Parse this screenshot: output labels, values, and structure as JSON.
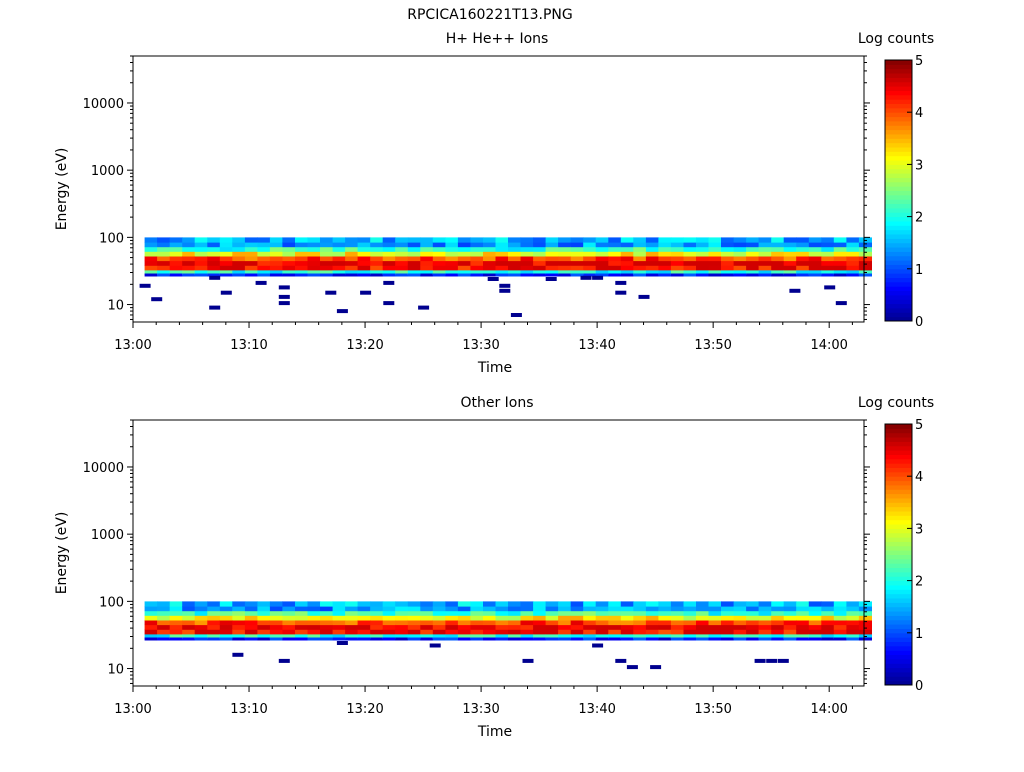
{
  "figure_title": "RPCICA160221T13.PNG",
  "colorbar": {
    "label": "Log counts",
    "range": [
      0,
      5
    ],
    "ticks": [
      "0",
      "1",
      "2",
      "3",
      "4",
      "5"
    ],
    "colormap": [
      "#00008f",
      "#0000ff",
      "#0080ff",
      "#00ffff",
      "#80ff80",
      "#ffff00",
      "#ff8000",
      "#ff0000",
      "#800000"
    ]
  },
  "chart_data": [
    {
      "type": "heatmap",
      "title": "H+ He++ Ions",
      "xlabel": "Time",
      "ylabel": "Energy (eV)",
      "y_scale": "log",
      "ylim": [
        5.5,
        50000
      ],
      "xlim": [
        "13:00",
        "14:03"
      ],
      "x_tick_labels": [
        "13:00",
        "13:10",
        "13:20",
        "13:30",
        "13:40",
        "13:50",
        "14:00"
      ],
      "y_tick_labels": [
        "10",
        "100",
        "1000",
        "10000"
      ],
      "band_energy_range_eV": [
        28,
        100
      ],
      "band_peak_energy_eV": 40,
      "band_peak_log_counts": 4.0,
      "sparse_low_energy_points": [
        {
          "time": "13:01",
          "energy": 19,
          "log_counts": 0
        },
        {
          "time": "13:02",
          "energy": 12,
          "log_counts": 0
        },
        {
          "time": "13:07",
          "energy": 9,
          "log_counts": 0
        },
        {
          "time": "13:07",
          "energy": 25,
          "log_counts": 0
        },
        {
          "time": "13:08",
          "energy": 15,
          "log_counts": 0
        },
        {
          "time": "13:11",
          "energy": 21,
          "log_counts": 0
        },
        {
          "time": "13:13",
          "energy": 18,
          "log_counts": 0
        },
        {
          "time": "13:13",
          "energy": 13,
          "log_counts": 0
        },
        {
          "time": "13:13",
          "energy": 10.5,
          "log_counts": 0
        },
        {
          "time": "13:17",
          "energy": 15,
          "log_counts": 0
        },
        {
          "time": "13:18",
          "energy": 8,
          "log_counts": 0
        },
        {
          "time": "13:20",
          "energy": 15,
          "log_counts": 0
        },
        {
          "time": "13:22",
          "energy": 21,
          "log_counts": 0
        },
        {
          "time": "13:22",
          "energy": 10.5,
          "log_counts": 0
        },
        {
          "time": "13:25",
          "energy": 9,
          "log_counts": 0
        },
        {
          "time": "13:31",
          "energy": 24,
          "log_counts": 0
        },
        {
          "time": "13:32",
          "energy": 19,
          "log_counts": 0
        },
        {
          "time": "13:32",
          "energy": 16,
          "log_counts": 0
        },
        {
          "time": "13:33",
          "energy": 7,
          "log_counts": 0
        },
        {
          "time": "13:36",
          "energy": 24,
          "log_counts": 0
        },
        {
          "time": "13:39",
          "energy": 25,
          "log_counts": 0
        },
        {
          "time": "13:40",
          "energy": 25,
          "log_counts": 0
        },
        {
          "time": "13:42",
          "energy": 21,
          "log_counts": 0
        },
        {
          "time": "13:42",
          "energy": 15,
          "log_counts": 0
        },
        {
          "time": "13:44",
          "energy": 13,
          "log_counts": 0
        },
        {
          "time": "13:57",
          "energy": 16,
          "log_counts": 0
        },
        {
          "time": "14:00",
          "energy": 18,
          "log_counts": 0
        },
        {
          "time": "14:01",
          "energy": 10.5,
          "log_counts": 0
        }
      ]
    },
    {
      "type": "heatmap",
      "title": "Other Ions",
      "xlabel": "Time",
      "ylabel": "Energy (eV)",
      "y_scale": "log",
      "ylim": [
        5.5,
        50000
      ],
      "xlim": [
        "13:00",
        "14:03"
      ],
      "x_tick_labels": [
        "13:00",
        "13:10",
        "13:20",
        "13:30",
        "13:40",
        "13:50",
        "14:00"
      ],
      "y_tick_labels": [
        "10",
        "100",
        "1000",
        "10000"
      ],
      "band_energy_range_eV": [
        28,
        100
      ],
      "band_peak_energy_eV": 40,
      "band_peak_log_counts": 4.0,
      "sparse_low_energy_points": [
        {
          "time": "13:09",
          "energy": 16,
          "log_counts": 0
        },
        {
          "time": "13:13",
          "energy": 13,
          "log_counts": 0
        },
        {
          "time": "13:18",
          "energy": 24,
          "log_counts": 0
        },
        {
          "time": "13:26",
          "energy": 22,
          "log_counts": 0
        },
        {
          "time": "13:34",
          "energy": 13,
          "log_counts": 0
        },
        {
          "time": "13:40",
          "energy": 22,
          "log_counts": 0
        },
        {
          "time": "13:42",
          "energy": 13,
          "log_counts": 0
        },
        {
          "time": "13:43",
          "energy": 10.5,
          "log_counts": 0
        },
        {
          "time": "13:45",
          "energy": 10.5,
          "log_counts": 0
        },
        {
          "time": "13:54",
          "energy": 13,
          "log_counts": 0
        },
        {
          "time": "13:55",
          "energy": 13,
          "log_counts": 0
        },
        {
          "time": "13:56",
          "energy": 13,
          "log_counts": 0
        }
      ]
    }
  ]
}
